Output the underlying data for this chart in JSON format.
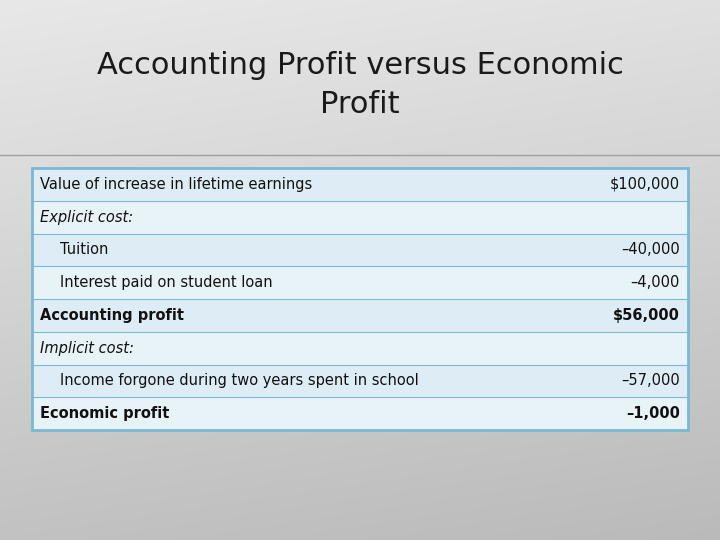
{
  "title": "Accounting Profit versus Economic\nProfit",
  "title_fontsize": 22,
  "title_color": "#1a1a1a",
  "table_border_color": "#7ab8d4",
  "table_row_bg_even": "#deedf5",
  "table_row_bg_odd": "#e8f3f8",
  "rows": [
    {
      "label": "Value of increase in lifetime earnings",
      "value": "$100,000",
      "bold": false,
      "italic": false,
      "indent": false
    },
    {
      "label": "Explicit cost:",
      "value": "",
      "bold": false,
      "italic": true,
      "indent": false
    },
    {
      "label": "Tuition",
      "value": "–40,000",
      "bold": false,
      "italic": false,
      "indent": true
    },
    {
      "label": "Interest paid on student loan",
      "value": "–4,000",
      "bold": false,
      "italic": false,
      "indent": true
    },
    {
      "label": "Accounting profit",
      "value": "$56,000",
      "bold": true,
      "italic": false,
      "indent": false
    },
    {
      "label": "Implicit cost:",
      "value": "",
      "bold": false,
      "italic": true,
      "indent": false
    },
    {
      "label": "Income forgone during two years spent in school",
      "value": "–57,000",
      "bold": false,
      "italic": false,
      "indent": true
    },
    {
      "label": "Economic profit",
      "value": "–1,000",
      "bold": true,
      "italic": false,
      "indent": false
    }
  ]
}
